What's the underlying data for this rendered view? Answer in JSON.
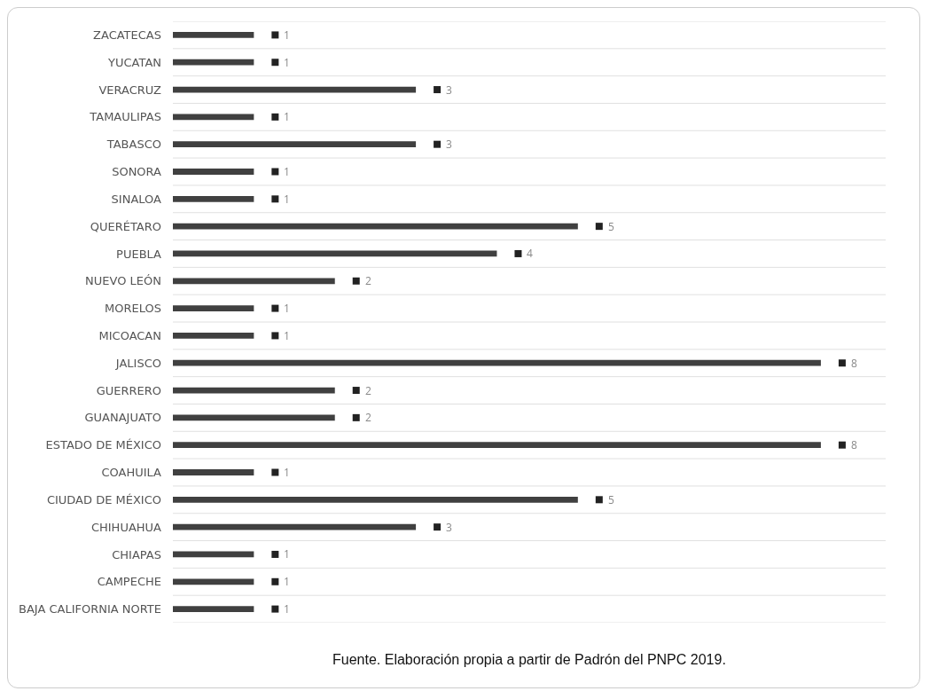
{
  "chart_data": {
    "type": "bar",
    "orientation": "horizontal",
    "categories": [
      "ZACATECAS",
      "YUCATAN",
      "VERACRUZ",
      "TAMAULIPAS",
      "TABASCO",
      "SONORA",
      "SINALOA",
      "QUERÉTARO",
      "PUEBLA",
      "NUEVO LEÓN",
      "MORELOS",
      "MICOACAN",
      "JALISCO",
      "GUERRERO",
      "GUANAJUATO",
      "ESTADO DE MÉXICO",
      "COAHUILA",
      "CIUDAD DE MÉXICO",
      "CHIHUAHUA",
      "CHIAPAS",
      "CAMPECHE",
      "BAJA CALIFORNIA NORTE"
    ],
    "values": [
      1,
      1,
      3,
      1,
      3,
      1,
      1,
      5,
      4,
      2,
      1,
      1,
      8,
      2,
      2,
      8,
      1,
      5,
      3,
      1,
      1,
      1
    ],
    "color": "#404040",
    "data_labels": true,
    "grid": "y",
    "tick_labels": "y",
    "annotations": [
      "Fuente. Elaboración propia a partir de Padrón del PNPC 2019."
    ]
  }
}
